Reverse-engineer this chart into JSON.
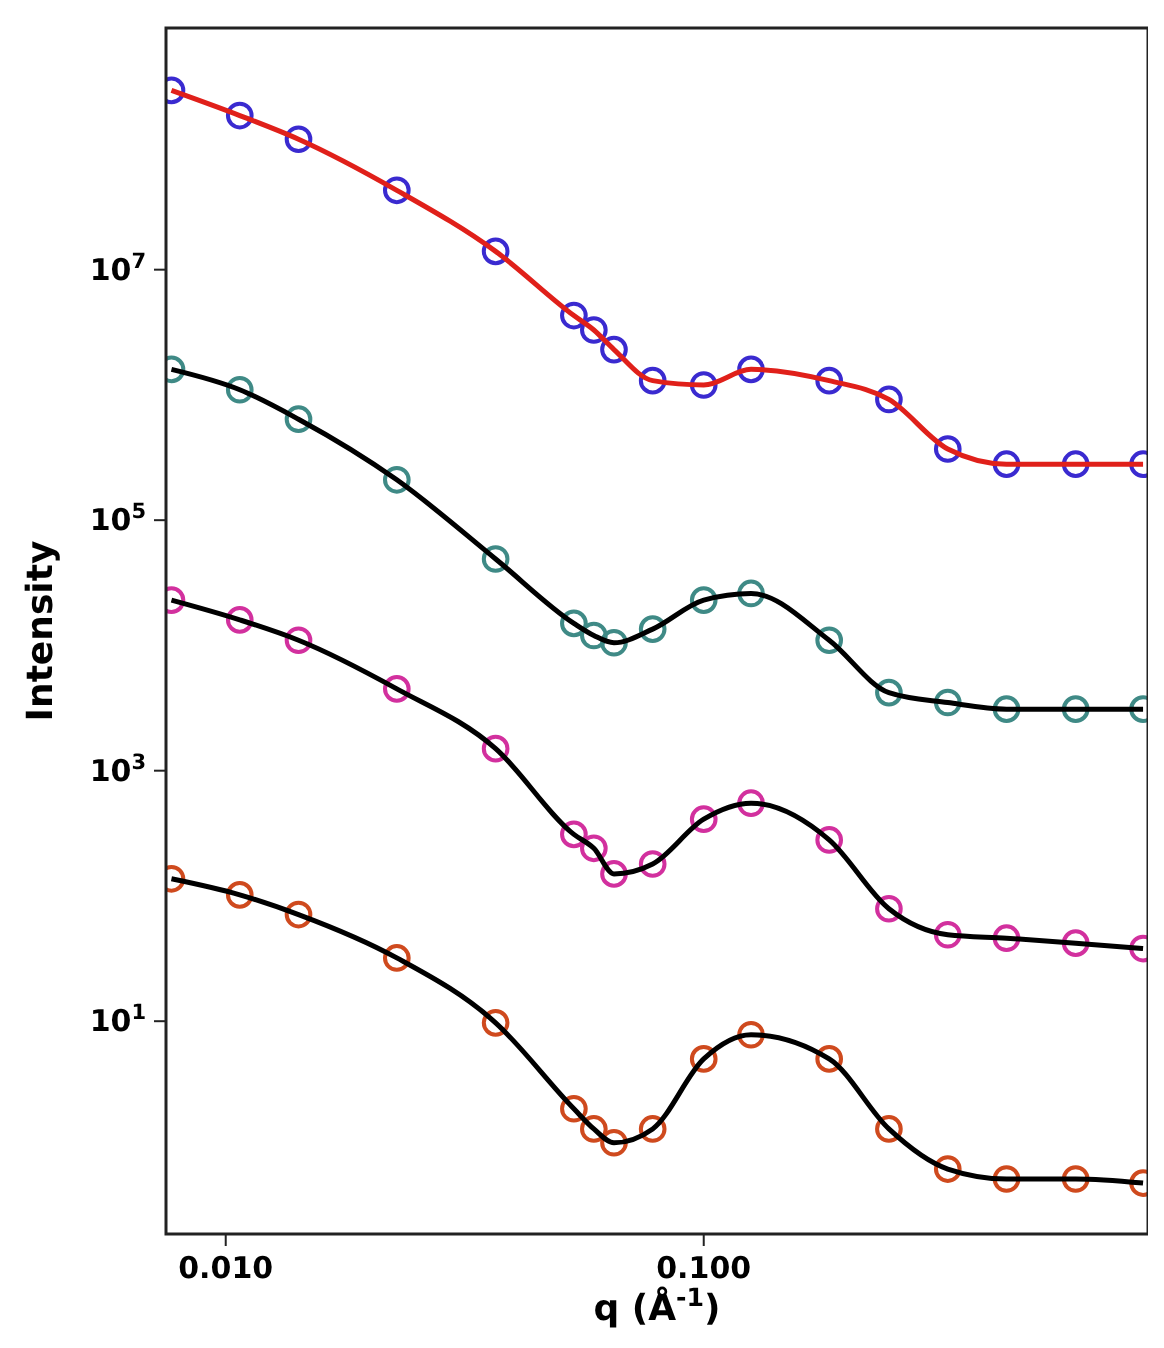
{
  "chart_data": {
    "type": "scatter",
    "xlabel": "q (Å$^{-1}$)",
    "ylabel": "Intensity",
    "log": "xy",
    "grid": false,
    "xlim": [
      0.0075,
      0.85
    ],
    "ylim": [
      0.2,
      850000000
    ],
    "xticks": [
      {
        "value": 0.01,
        "label": "0.010"
      },
      {
        "value": 0.1,
        "label": "0.100"
      }
    ],
    "yticks": [
      {
        "value": 10,
        "label": "10$^{1}$"
      },
      {
        "value": 1000,
        "label": "10$^{3}$"
      },
      {
        "value": 100000,
        "label": "10$^{5}$"
      },
      {
        "value": 10000000,
        "label": "10$^{7}$"
      }
    ],
    "x": [
      0.0077,
      0.0107,
      0.0142,
      0.0228,
      0.0367,
      0.0535,
      0.0589,
      0.0649,
      0.0782,
      0.1,
      0.1256,
      0.183,
      0.244,
      0.324,
      0.43,
      0.6,
      0.83
    ],
    "series": [
      {
        "marker": "circle",
        "color": "#3a2ad0",
        "values": [
          270000000,
          170000000,
          110000000,
          43000000,
          14000000,
          4300000,
          3300000,
          2300000,
          1300000,
          1200000,
          1600000,
          1300000,
          920000,
          370000,
          280000,
          280000,
          280000
        ]
      },
      {
        "type": "line",
        "line_style": "solid",
        "color": "#e0201a",
        "values": [
          270000000,
          170000000,
          110000000,
          43000000,
          14000000,
          4300000,
          3300000,
          2300000,
          1300000,
          1200000,
          1600000,
          1300000,
          920000,
          370000,
          280000,
          280000,
          280000
        ]
      },
      {
        "marker": "circle",
        "color": "#3f8a86",
        "values": [
          1600000,
          1100000,
          640000,
          210000,
          49000,
          15000,
          12000,
          10500,
          13500,
          23000,
          26000,
          11000,
          4200,
          3500,
          3100,
          3100,
          3100
        ]
      },
      {
        "type": "line",
        "line_style": "solid",
        "color": "#000000",
        "values": [
          1600000,
          1100000,
          640000,
          210000,
          49000,
          15000,
          12000,
          10500,
          13500,
          23000,
          26000,
          11000,
          4200,
          3500,
          3100,
          3100,
          3100
        ]
      },
      {
        "marker": "circle",
        "color": "#d2309e",
        "values": [
          23000,
          16000,
          11000,
          4500,
          1500,
          310,
          240,
          150,
          180,
          410,
          550,
          280,
          79,
          49,
          46,
          42,
          38
        ]
      },
      {
        "type": "line",
        "line_style": "solid",
        "color": "#000000",
        "values": [
          23000,
          16000,
          11000,
          4500,
          1500,
          310,
          240,
          150,
          180,
          410,
          550,
          280,
          79,
          49,
          46,
          42,
          38
        ]
      },
      {
        "marker": "circle",
        "color": "#cf4a1e",
        "values": [
          137,
          102,
          71,
          32,
          9.7,
          2.0,
          1.38,
          1.07,
          1.38,
          5.0,
          7.8,
          5.0,
          1.38,
          0.66,
          0.55,
          0.55,
          0.51
        ]
      },
      {
        "type": "line",
        "line_style": "solid",
        "color": "#000000",
        "values": [
          137,
          102,
          71,
          32,
          9.7,
          2.0,
          1.38,
          1.07,
          1.38,
          5.0,
          7.8,
          5.0,
          1.38,
          0.66,
          0.55,
          0.55,
          0.51
        ]
      }
    ]
  }
}
